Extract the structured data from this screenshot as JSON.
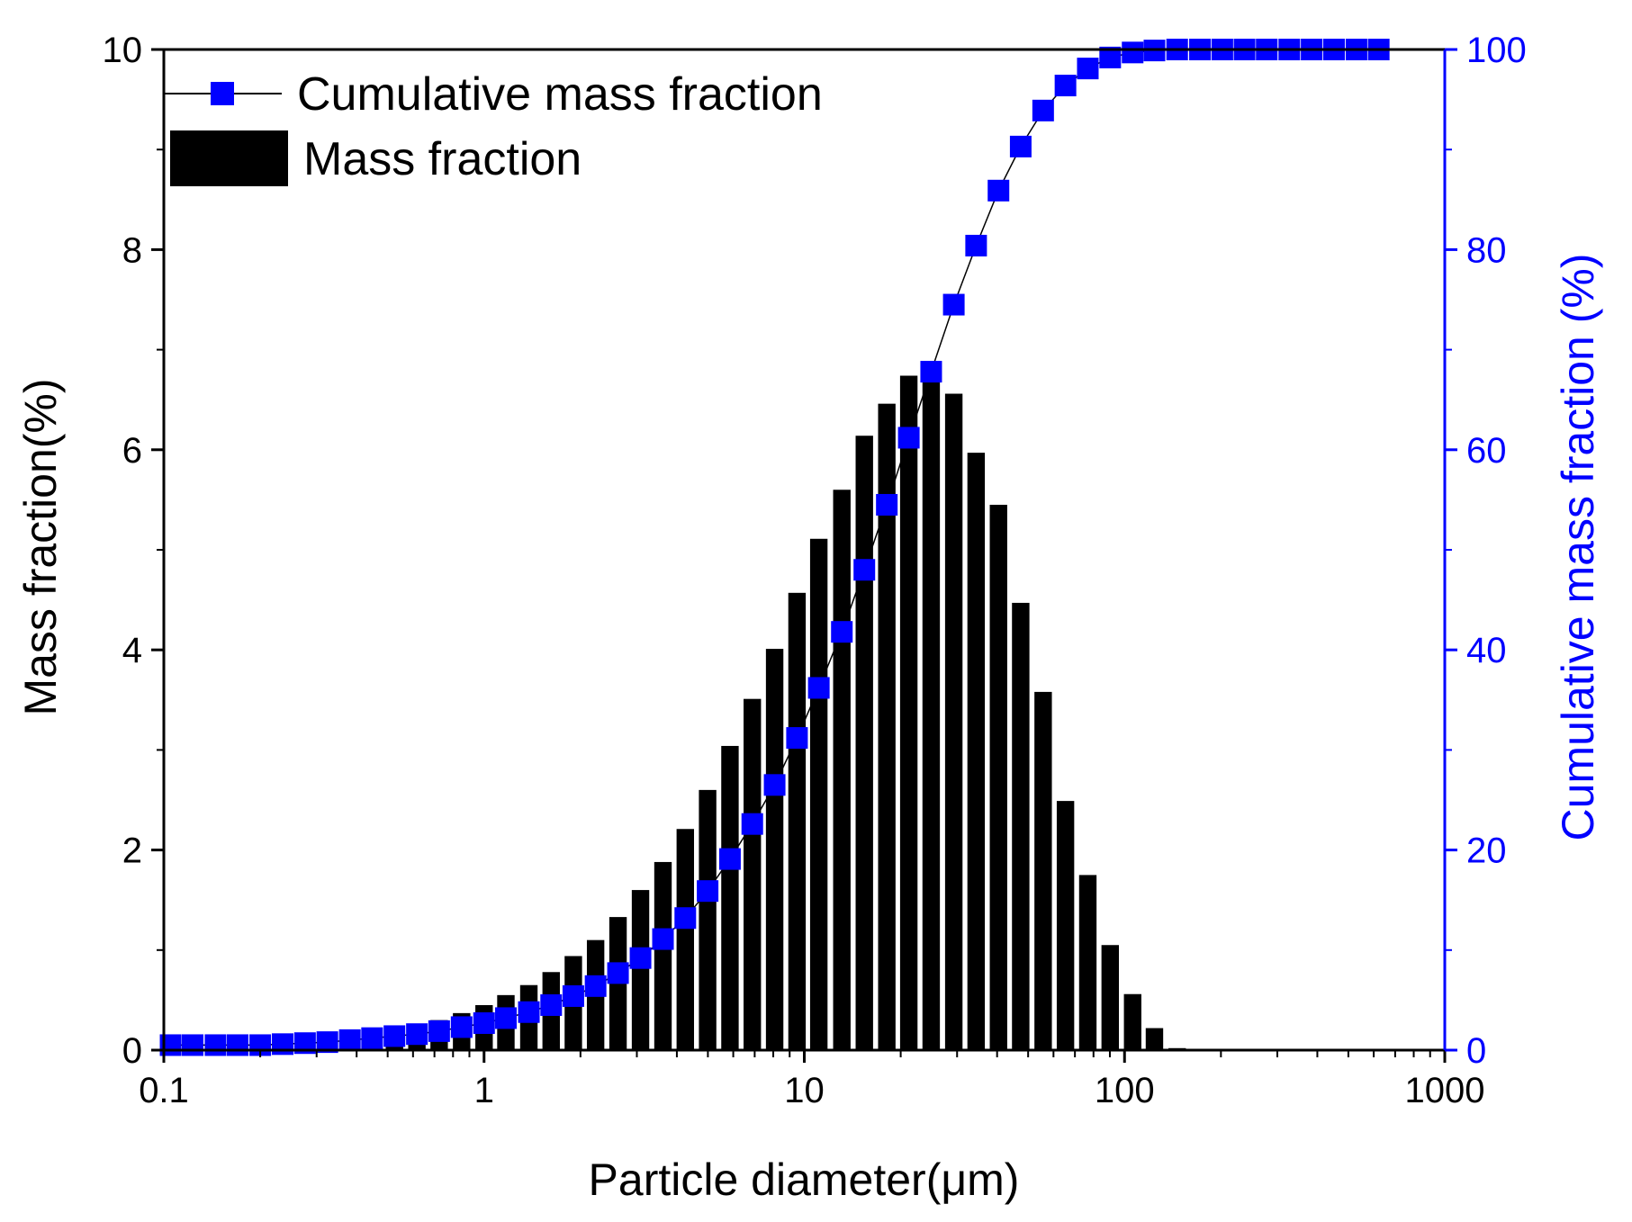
{
  "chart_data": {
    "type": "bar+line",
    "x_scale": "log",
    "xlim": [
      0.1,
      1000
    ],
    "xticks": [
      0.1,
      1,
      10,
      100,
      1000
    ],
    "xtick_labels": [
      "0.1",
      "1",
      "10",
      "100",
      "1000"
    ],
    "xlabel": "Particle diameter(μm)",
    "ylabel_left": "Mass fraction(%)",
    "ylim_left": [
      0,
      10
    ],
    "yticks_left": [
      0,
      2,
      4,
      6,
      8,
      10
    ],
    "ytick_labels_left": [
      "0",
      "2",
      "4",
      "6",
      "8",
      "10"
    ],
    "ylabel_right": "Cumulative mass fraction (%)",
    "ylim_right": [
      0,
      100
    ],
    "yticks_right": [
      0,
      20,
      40,
      60,
      80,
      100
    ],
    "ytick_labels_right": [
      "0",
      "20",
      "40",
      "60",
      "80",
      "100"
    ],
    "legend_position": "top-left",
    "series": [
      {
        "name": "Mass fraction",
        "type": "bar",
        "axis": "left",
        "color": "#000000",
        "x": [
          0.105,
          0.123,
          0.145,
          0.17,
          0.2,
          0.235,
          0.276,
          0.324,
          0.381,
          0.447,
          0.525,
          0.617,
          0.724,
          0.851,
          1.0,
          1.17,
          1.38,
          1.62,
          1.9,
          2.23,
          2.62,
          3.08,
          3.62,
          4.25,
          4.99,
          5.86,
          6.88,
          8.08,
          9.49,
          11.1,
          13.1,
          15.4,
          18.1,
          21.2,
          24.9,
          29.3,
          34.4,
          40.4,
          47.4,
          55.7,
          65.4,
          76.8,
          90.2,
          106,
          124,
          146
        ],
        "values": [
          0.02,
          0.02,
          0.03,
          0.03,
          0.04,
          0.06,
          0.08,
          0.1,
          0.13,
          0.16,
          0.2,
          0.25,
          0.3,
          0.37,
          0.45,
          0.55,
          0.65,
          0.78,
          0.94,
          1.1,
          1.33,
          1.6,
          1.88,
          2.21,
          2.6,
          3.04,
          3.51,
          4.01,
          4.57,
          5.11,
          5.6,
          6.14,
          6.46,
          6.74,
          6.68,
          6.56,
          5.97,
          5.45,
          4.47,
          3.58,
          2.49,
          1.75,
          1.05,
          0.56,
          0.22,
          0.02
        ]
      },
      {
        "name": "Cumulative mass fraction",
        "type": "line",
        "marker": "square",
        "axis": "right",
        "color": "#0000ff",
        "x": [
          0.105,
          0.123,
          0.145,
          0.17,
          0.2,
          0.235,
          0.276,
          0.324,
          0.381,
          0.447,
          0.525,
          0.617,
          0.724,
          0.851,
          1.0,
          1.17,
          1.38,
          1.62,
          1.9,
          2.23,
          2.62,
          3.08,
          3.62,
          4.25,
          4.99,
          5.86,
          6.88,
          8.08,
          9.49,
          11.1,
          13.1,
          15.4,
          18.1,
          21.2,
          24.9,
          29.3,
          34.4,
          40.4,
          47.4,
          55.7,
          65.4,
          76.8,
          90.2,
          106,
          124,
          146,
          172,
          202,
          237,
          278,
          327,
          384,
          451,
          530,
          622
        ],
        "values": [
          0.5,
          0.5,
          0.5,
          0.5,
          0.5,
          0.6,
          0.7,
          0.8,
          1.0,
          1.2,
          1.4,
          1.6,
          1.9,
          2.3,
          2.7,
          3.2,
          3.8,
          4.5,
          5.4,
          6.4,
          7.7,
          9.2,
          11.1,
          13.2,
          15.9,
          19.1,
          22.6,
          26.5,
          31.2,
          36.2,
          41.8,
          48.0,
          54.5,
          61.2,
          67.8,
          74.5,
          80.4,
          85.9,
          90.3,
          93.9,
          96.4,
          98.1,
          99.2,
          99.7,
          99.9,
          100.0,
          100.0,
          100.0,
          100.0,
          100.0,
          100.0,
          100.0,
          100.0,
          100.0,
          100.0
        ]
      }
    ]
  }
}
